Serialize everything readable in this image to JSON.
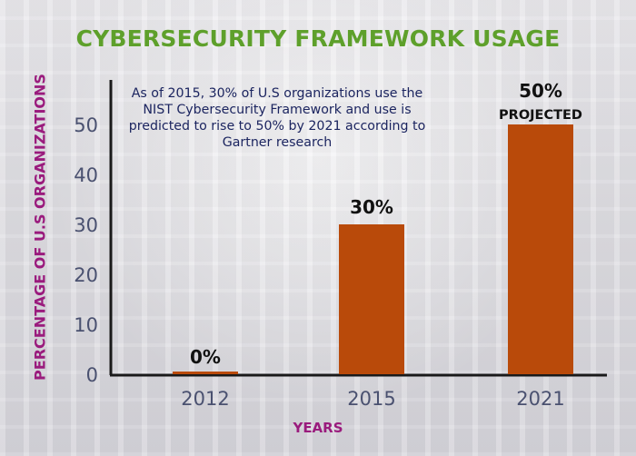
{
  "chart_data": {
    "type": "bar",
    "title": "CYBERSECURITY FRAMEWORK USAGE",
    "xlabel": "YEARS",
    "ylabel": "PERCENTAGE OF U.S ORGANIZATIONS",
    "categories": [
      "2012",
      "2015",
      "2021"
    ],
    "values": [
      0,
      30,
      50
    ],
    "data_labels": [
      "0%",
      "30%",
      "50%"
    ],
    "bar_sublabels": [
      "",
      "",
      "PROJECTED"
    ],
    "ylim": [
      0,
      50
    ],
    "yticks": [
      0,
      10,
      20,
      30,
      40,
      50
    ],
    "annotation": "As of 2015, 30% of U.S organizations use the NIST Cybersecurity Framework and use is predicted to rise to 50% by 2021 according to Gartner research",
    "grid": false,
    "colors": {
      "bar": "#b94a0a",
      "title": "#5ea02b",
      "axis_title": "#9a1b7d",
      "tick": "#4a5170",
      "annotation": "#1c2560"
    }
  }
}
